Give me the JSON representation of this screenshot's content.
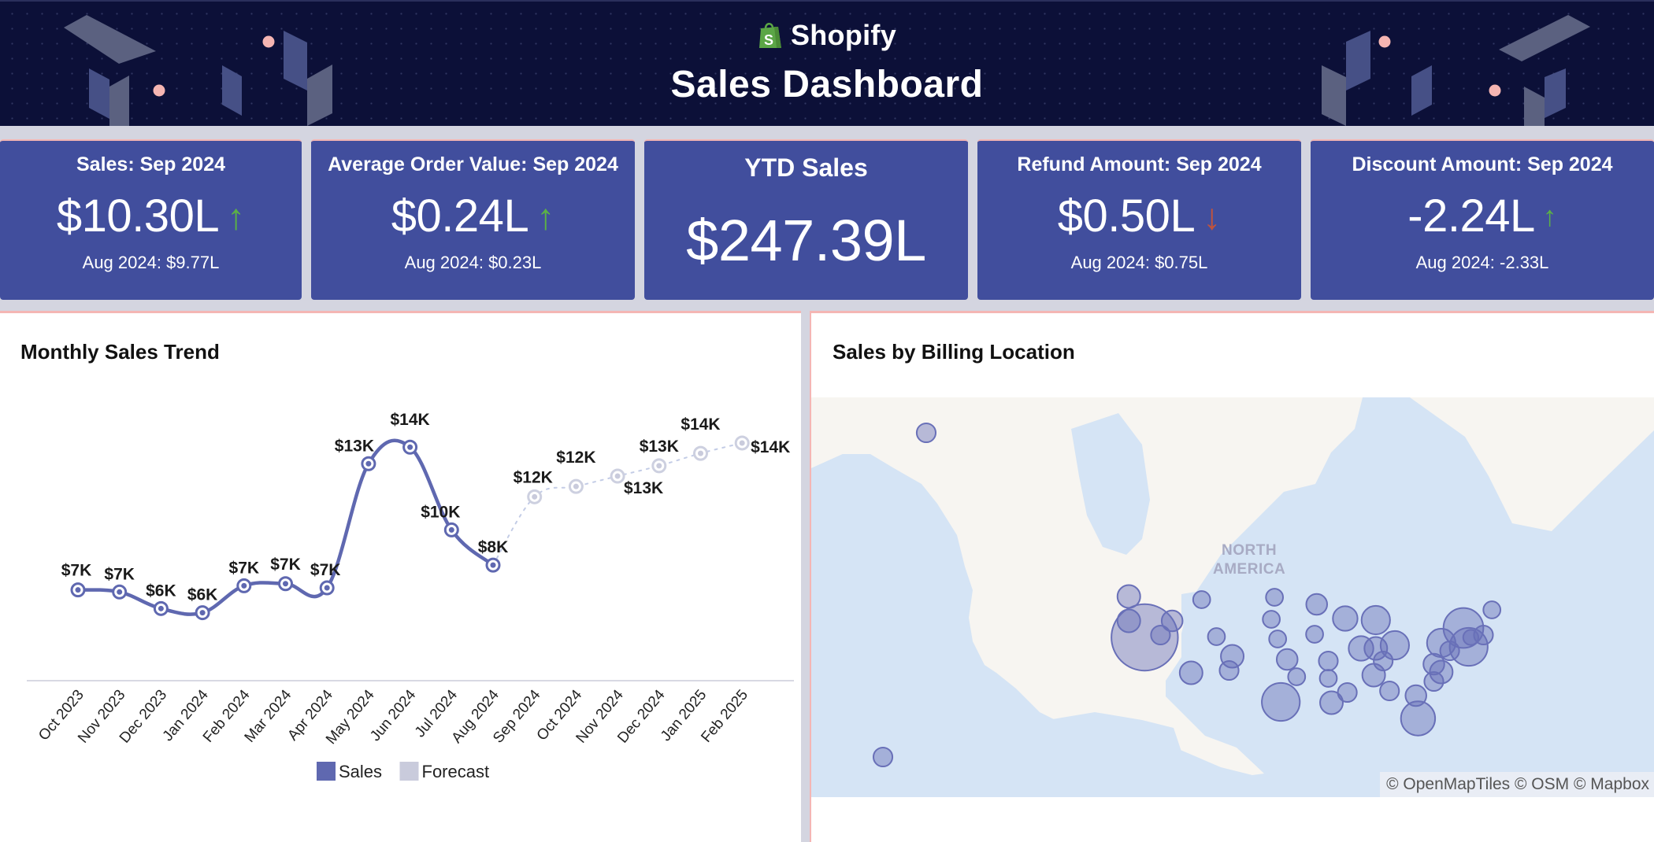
{
  "header": {
    "brand": "Shopify",
    "brand_icon": "shopify-bag-icon",
    "title": "Sales Dashboard",
    "colors": {
      "background": "#0c1038",
      "brand_green": "#5ba646"
    }
  },
  "kpis": [
    {
      "label": "Sales: Sep 2024",
      "value": "$10.30L",
      "trend": "up",
      "trend_icon": "arrow-up-icon",
      "comparison": "Aug 2024: $9.77L"
    },
    {
      "label": "Average Order Value: Sep 2024",
      "value": "$0.24L",
      "trend": "up",
      "trend_icon": "arrow-up-icon",
      "comparison": "Aug 2024: $0.23L"
    },
    {
      "label": "YTD Sales",
      "value": "$247.39L"
    },
    {
      "label": "Refund Amount: Sep 2024",
      "value": "$0.50L",
      "trend": "down",
      "trend_icon": "arrow-down-icon",
      "comparison": "Aug 2024: $0.75L"
    },
    {
      "label": "Discount Amount: Sep 2024",
      "value": "-2.24L",
      "trend": "up",
      "trend_icon": "arrow-up-icon",
      "comparison": "Aug 2024: -2.33L"
    }
  ],
  "kpi_colors": {
    "card": "#414e9d",
    "up": "#5bb146",
    "down": "#c0533d"
  },
  "trend_panel": {
    "title": "Monthly Sales Trend"
  },
  "chart_data": {
    "type": "line",
    "title": "Monthly Sales Trend",
    "xlabel": "",
    "ylabel": "",
    "categories": [
      "Oct 2023",
      "Nov 2023",
      "Dec 2023",
      "Jan 2024",
      "Feb 2024",
      "Mar 2024",
      "Apr 2024",
      "May 2024",
      "Jun 2024",
      "Jul 2024",
      "Aug 2024",
      "Sep 2024",
      "Oct 2024",
      "Nov 2024",
      "Dec 2024",
      "Jan 2025",
      "Feb 2025"
    ],
    "series": [
      {
        "name": "Sales",
        "color": "#5f68b0",
        "style": "solid",
        "values": [
          7.0,
          6.9,
          6.1,
          5.9,
          7.2,
          7.3,
          7.1,
          13.1,
          13.9,
          9.9,
          8.2,
          null,
          null,
          null,
          null,
          null,
          null
        ],
        "labels": [
          "$7K",
          "$7K",
          "$6K",
          "$6K",
          "$7K",
          "$7K",
          "$7K",
          "$13K",
          "$14K",
          "$10K",
          "$8K",
          null,
          null,
          null,
          null,
          null,
          null
        ]
      },
      {
        "name": "Forecast",
        "color": "#c9cbdc",
        "style": "dotted",
        "values": [
          null,
          null,
          null,
          null,
          null,
          null,
          null,
          null,
          null,
          null,
          8.2,
          11.5,
          12.0,
          12.5,
          13.0,
          13.6,
          14.1
        ],
        "labels": [
          null,
          null,
          null,
          null,
          null,
          null,
          null,
          null,
          null,
          null,
          null,
          "$12K",
          "$12K",
          "$13K",
          "$13K",
          "$14K",
          "$14K"
        ]
      }
    ],
    "value_unit": "thousands USD",
    "ylim": [
      2.5,
      16
    ],
    "grid": false,
    "y_axis_visible": false,
    "legend": {
      "position": "bottom",
      "items": [
        {
          "name": "Sales",
          "color": "#5f68b0"
        },
        {
          "name": "Forecast",
          "color": "#c9cbdc"
        }
      ]
    }
  },
  "map_panel": {
    "title": "Sales by Billing Location",
    "continent_label": "NORTH\nAMERICA",
    "attribution": "© OpenMapTiles © OSM © Mapbox",
    "bubble_color": "#6970b8",
    "bubbles_relative_size": [
      {
        "region": "Alaska",
        "size": 1
      },
      {
        "region": "Hawaii",
        "size": 1
      },
      {
        "region": "Washington",
        "size": 1.2
      },
      {
        "region": "Oregon",
        "size": 1.2
      },
      {
        "region": "California",
        "size": 3.5
      },
      {
        "region": "Nevada",
        "size": 1
      },
      {
        "region": "Idaho",
        "size": 1.1
      },
      {
        "region": "Montana",
        "size": 0.9
      },
      {
        "region": "Utah",
        "size": 0.9
      },
      {
        "region": "Colorado",
        "size": 1.2
      },
      {
        "region": "Arizona",
        "size": 1.2
      },
      {
        "region": "New Mexico",
        "size": 1
      },
      {
        "region": "North Dakota",
        "size": 0.9
      },
      {
        "region": "South Dakota",
        "size": 0.9
      },
      {
        "region": "Nebraska",
        "size": 0.9
      },
      {
        "region": "Kansas",
        "size": 1.1
      },
      {
        "region": "Oklahoma",
        "size": 0.9
      },
      {
        "region": "Texas",
        "size": 2
      },
      {
        "region": "Minnesota",
        "size": 1.1
      },
      {
        "region": "Iowa",
        "size": 0.9
      },
      {
        "region": "Missouri",
        "size": 1
      },
      {
        "region": "Arkansas",
        "size": 0.9
      },
      {
        "region": "Louisiana",
        "size": 1.2
      },
      {
        "region": "Mississippi",
        "size": 1
      },
      {
        "region": "Wisconsin",
        "size": 1.3
      },
      {
        "region": "Illinois",
        "size": 1.3
      },
      {
        "region": "Michigan",
        "size": 1.5
      },
      {
        "region": "Indiana",
        "size": 1.2
      },
      {
        "region": "Ohio",
        "size": 1.5
      },
      {
        "region": "Kentucky",
        "size": 1
      },
      {
        "region": "Tennessee",
        "size": 1.2
      },
      {
        "region": "Alabama",
        "size": 1
      },
      {
        "region": "Georgia",
        "size": 1.1
      },
      {
        "region": "Florida",
        "size": 1.8
      },
      {
        "region": "South Carolina",
        "size": 1
      },
      {
        "region": "North Carolina",
        "size": 1.2
      },
      {
        "region": "Virginia",
        "size": 1.1
      },
      {
        "region": "Pennsylvania",
        "size": 1.5
      },
      {
        "region": "New York",
        "size": 2.1
      },
      {
        "region": "New Jersey",
        "size": 2.0
      },
      {
        "region": "Maryland",
        "size": 1
      },
      {
        "region": "Massachusetts",
        "size": 1
      },
      {
        "region": "Connecticut",
        "size": 0.8
      },
      {
        "region": "Maine",
        "size": 0.9
      }
    ]
  }
}
